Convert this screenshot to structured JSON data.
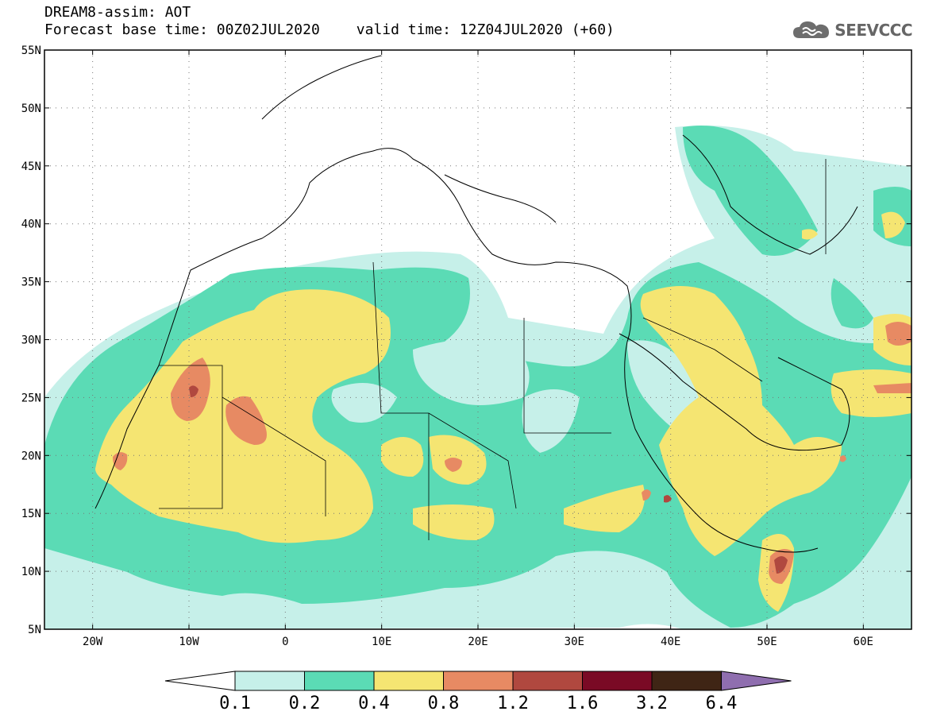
{
  "header": {
    "title": "DREAM8-assim: AOT",
    "base_time": "Forecast base time: 00Z02JUL2020",
    "valid_time": "valid time: 12Z04JUL2020 (+60)"
  },
  "logo": {
    "text": "SEEVCCC",
    "icon": "cloud-icon"
  },
  "map": {
    "lat_ticks": [
      "55N",
      "50N",
      "45N",
      "40N",
      "35N",
      "30N",
      "25N",
      "20N",
      "15N",
      "10N",
      "5N"
    ],
    "lon_ticks": [
      "20W",
      "10W",
      "0",
      "10E",
      "20E",
      "30E",
      "40E",
      "50E",
      "60E"
    ],
    "lon_range": [
      -25,
      65
    ],
    "lat_range": [
      5,
      55
    ]
  },
  "colorbar": {
    "labels": [
      "0.1",
      "0.2",
      "0.4",
      "0.8",
      "1.2",
      "1.6",
      "3.2",
      "6.4"
    ],
    "colors": [
      "#ffffff",
      "#c6f0e9",
      "#5bdbb5",
      "#f5e572",
      "#e78a63",
      "#b0483f",
      "#7a0a25",
      "#3f2515",
      "#8f6eaf"
    ]
  },
  "levels": {
    "l1": "#c6f0e9",
    "l2": "#5bdbb5",
    "l3": "#f5e572",
    "l4": "#e78a63",
    "l5": "#b0483f",
    "l6": "#7a0a25"
  }
}
